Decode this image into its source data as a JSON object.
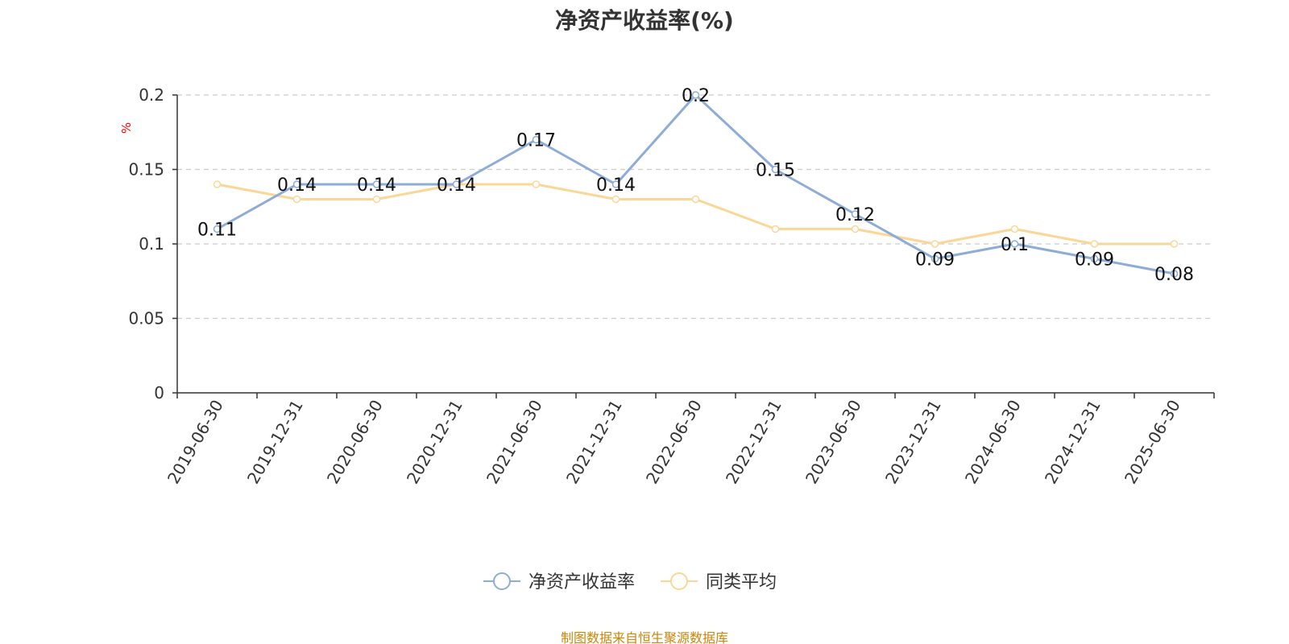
{
  "chart_data": {
    "type": "line",
    "title": "净资产收益率(%)",
    "ylabel": "%",
    "xlabel": "",
    "categories": [
      "2019-06-30",
      "2019-12-31",
      "2020-06-30",
      "2020-12-31",
      "2021-06-30",
      "2021-12-31",
      "2022-06-30",
      "2022-12-31",
      "2023-06-30",
      "2023-12-31",
      "2024-06-30",
      "2024-12-31",
      "2025-06-30"
    ],
    "ylim": [
      0,
      0.2
    ],
    "yticks": [
      "0",
      "0.05",
      "0.1",
      "0.15",
      "0.2"
    ],
    "grid": true,
    "legend_position": "bottom",
    "series": [
      {
        "name": "净资产收益率",
        "color": "#8eacd8",
        "values": [
          0.11,
          0.14,
          0.14,
          0.14,
          0.17,
          0.14,
          0.2,
          0.15,
          0.12,
          0.09,
          0.1,
          0.09,
          0.08
        ],
        "labels": [
          "0.11",
          "0.14",
          "0.14",
          "0.14",
          "0.17",
          "0.14",
          "0.2",
          "0.15",
          "0.12",
          "0.09",
          "0.1",
          "0.09",
          "0.08"
        ]
      },
      {
        "name": "同类平均",
        "color": "#fad797",
        "values": [
          0.14,
          0.13,
          0.13,
          0.14,
          0.14,
          0.13,
          0.13,
          0.11,
          0.11,
          0.1,
          0.11,
          0.1,
          0.1
        ]
      }
    ]
  },
  "source_note": "制图数据来自恒生聚源数据库"
}
